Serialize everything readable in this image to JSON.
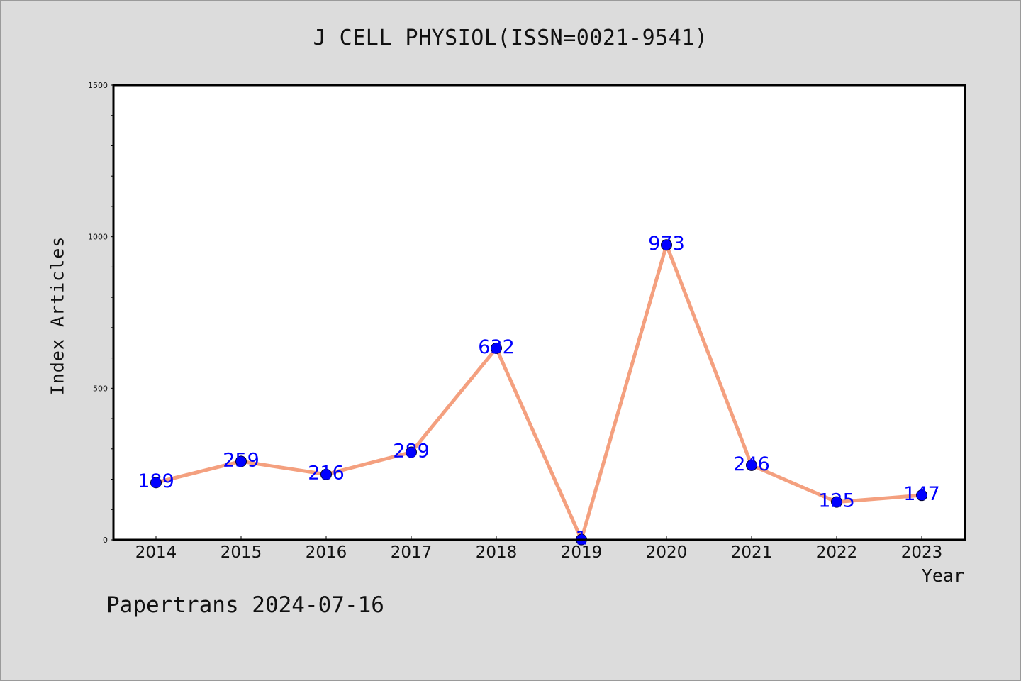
{
  "chart_data": {
    "type": "line",
    "title": "J CELL PHYSIOL(ISSN=0021-9541)",
    "xlabel": "Year",
    "ylabel": "Index Articles",
    "categories": [
      "2014",
      "2015",
      "2016",
      "2017",
      "2018",
      "2019",
      "2020",
      "2021",
      "2022",
      "2023"
    ],
    "series": [
      {
        "values": [
          189,
          259,
          216,
          289,
          632,
          1,
          973,
          246,
          125,
          147
        ]
      }
    ],
    "ylim": [
      0,
      1500
    ],
    "yticks": [
      "0",
      "500",
      "1000",
      "1500"
    ],
    "grid": false,
    "data_labels": true,
    "line_color": "#f4a07f",
    "marker_color": "#0000ff",
    "label_color": "#0000ff"
  },
  "footer": {
    "text": "Papertrans 2024-07-16"
  },
  "colors": {
    "background": "#dcdcdc",
    "plot_background": "#ffffff"
  }
}
